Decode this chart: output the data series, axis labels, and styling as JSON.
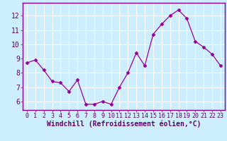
{
  "x": [
    0,
    1,
    2,
    3,
    4,
    5,
    6,
    7,
    8,
    9,
    10,
    11,
    12,
    13,
    14,
    15,
    16,
    17,
    18,
    19,
    20,
    21,
    22,
    23
  ],
  "y": [
    8.7,
    8.9,
    8.2,
    7.4,
    7.3,
    6.7,
    7.5,
    5.8,
    5.8,
    6.0,
    5.8,
    7.0,
    8.0,
    9.4,
    8.5,
    10.7,
    11.4,
    12.0,
    12.4,
    11.8,
    10.2,
    9.8,
    9.3,
    8.5
  ],
  "line_color": "#990099",
  "marker": "D",
  "marker_size": 2.5,
  "bg_color": "#cceeff",
  "grid_color": "#ffffff",
  "ylabel_ticks": [
    6,
    7,
    8,
    9,
    10,
    11,
    12
  ],
  "xlabel": "Windchill (Refroidissement éolien,°C)",
  "xlabel_fontsize": 7,
  "tick_fontsize": 6,
  "ylim": [
    5.4,
    12.9
  ],
  "xlim": [
    -0.5,
    23.5
  ],
  "spine_color": "#880088",
  "label_color": "#660066"
}
